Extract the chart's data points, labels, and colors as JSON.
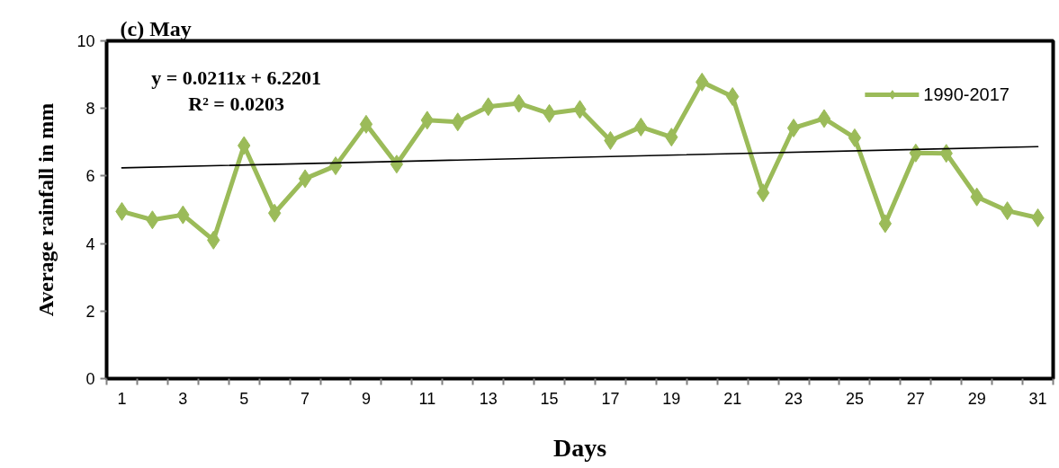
{
  "chart_data": {
    "type": "line",
    "title": "(c) May",
    "xlabel": "Days",
    "ylabel": "Average rainfall in mm",
    "annotations": [
      "y = 0.0211x + 6.2201",
      "R² = 0.0203"
    ],
    "x": [
      1,
      2,
      3,
      4,
      5,
      6,
      7,
      8,
      9,
      10,
      11,
      12,
      13,
      14,
      15,
      16,
      17,
      18,
      19,
      20,
      21,
      22,
      23,
      24,
      25,
      26,
      27,
      28,
      29,
      30,
      31
    ],
    "series": [
      {
        "name": "1990-2017",
        "color": "#9bbb59",
        "values": [
          4.95,
          4.7,
          4.85,
          4.1,
          6.9,
          4.9,
          5.92,
          6.3,
          7.53,
          6.35,
          7.65,
          7.6,
          8.05,
          8.15,
          7.85,
          7.97,
          7.05,
          7.45,
          7.15,
          8.78,
          8.35,
          5.5,
          7.42,
          7.7,
          7.13,
          4.59,
          6.68,
          6.67,
          5.38,
          4.97,
          4.76
        ]
      },
      {
        "color": "#000000",
        "x": [
          1,
          31
        ],
        "values": [
          6.24,
          6.87
        ],
        "marker": "none"
      }
    ],
    "marker": "diamond",
    "line_style": "solid",
    "legend": "top right",
    "grid": false,
    "xlim": [
      0.5,
      31.5
    ],
    "xticks": [
      1,
      3,
      5,
      7,
      9,
      11,
      13,
      15,
      17,
      19,
      21,
      23,
      25,
      27,
      29,
      31,
      {
        "value": 0.5,
        "label": null
      },
      {
        "value": 1.5,
        "label": null
      },
      {
        "value": 2.5,
        "label": null
      },
      {
        "value": 3.5,
        "label": null
      },
      {
        "value": 4.5,
        "label": null
      },
      {
        "value": 5.5,
        "label": null
      },
      {
        "value": 6.5,
        "label": null
      },
      {
        "value": 7.5,
        "label": null
      },
      {
        "value": 8.5,
        "label": null
      },
      {
        "value": 9.5,
        "label": null
      },
      {
        "value": 10.5,
        "label": null
      },
      {
        "value": 11.5,
        "label": null
      },
      {
        "value": 12.5,
        "label": null
      },
      {
        "value": 13.5,
        "label": null
      },
      {
        "value": 14.5,
        "label": null
      },
      {
        "value": 15.5,
        "label": null
      },
      {
        "value": 16.5,
        "label": null
      },
      {
        "value": 17.5,
        "label": null
      },
      {
        "value": 18.5,
        "label": null
      },
      {
        "value": 19.5,
        "label": null
      },
      {
        "value": 20.5,
        "label": null
      },
      {
        "value": 21.5,
        "label": null
      },
      {
        "value": 22.5,
        "label": null
      },
      {
        "value": 23.5,
        "label": null
      },
      {
        "value": 24.5,
        "label": null
      },
      {
        "value": 25.5,
        "label": null
      },
      {
        "value": 26.5,
        "label": null
      },
      {
        "value": 27.5,
        "label": null
      },
      {
        "value": 28.5,
        "label": null
      },
      {
        "value": 29.5,
        "label": null
      },
      {
        "value": 30.5,
        "label": null
      },
      {
        "value": 31.5,
        "label": null
      }
    ],
    "ylim": [
      0,
      10
    ],
    "yticks": [
      0,
      2,
      4,
      6,
      8,
      10
    ]
  }
}
